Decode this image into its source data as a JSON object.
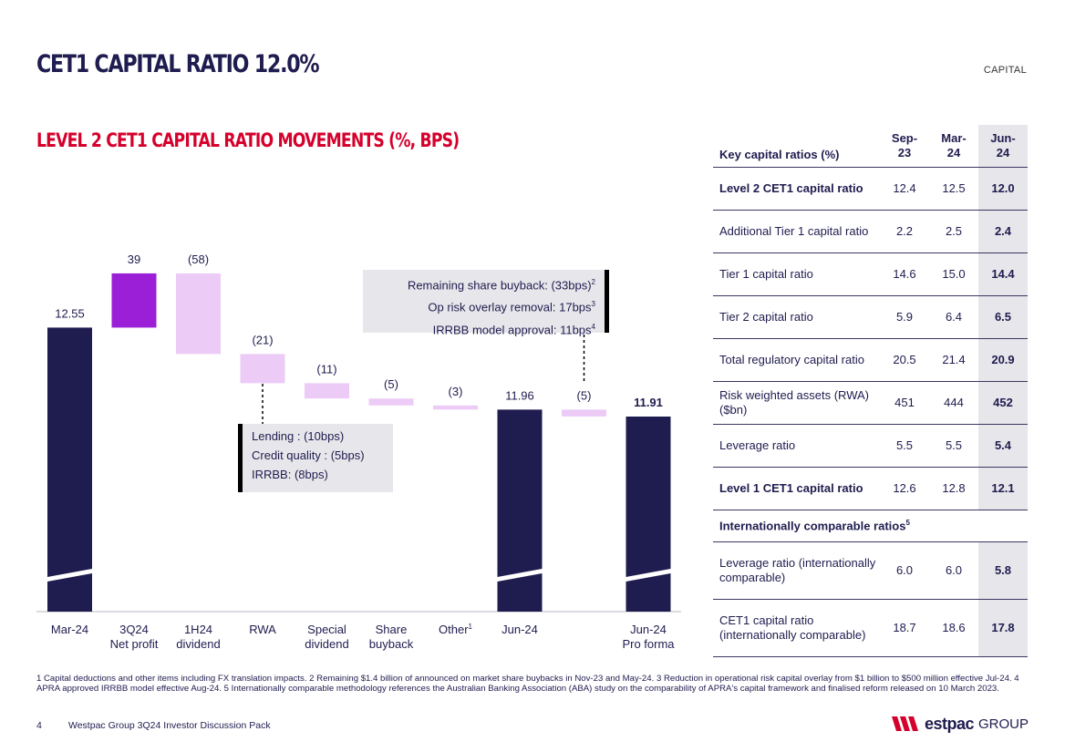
{
  "header": {
    "title": "CET1 CAPITAL RATIO 12.0%",
    "section": "CAPITAL"
  },
  "chart_title": "LEVEL 2 CET1 CAPITAL RATIO MOVEMENTS (%, BPS)",
  "colors": {
    "navy": "#1f1c4f",
    "purple": "#9b1fd6",
    "lilac": "#ecccf6",
    "red": "#d5002b",
    "grey_box": "#e7e6ea"
  },
  "chart_data": {
    "type": "bar",
    "subtype": "waterfall",
    "title": "LEVEL 2 CET1 CAPITAL RATIO MOVEMENTS (%, BPS)",
    "unit_totals": "%",
    "unit_movements": "bps",
    "axis_break": true,
    "steps": [
      {
        "label": "Mar-24",
        "kind": "total",
        "value": 12.55,
        "display": "12.55",
        "bold": false
      },
      {
        "label": "3Q24 Net profit",
        "kind": "delta",
        "value": 39,
        "display": "39",
        "color": "purple"
      },
      {
        "label": "1H24 dividend",
        "kind": "delta",
        "value": -58,
        "display": "(58)",
        "color": "lilac"
      },
      {
        "label": "RWA",
        "kind": "delta",
        "value": -21,
        "display": "(21)",
        "color": "lilac"
      },
      {
        "label": "Special dividend",
        "kind": "delta",
        "value": -11,
        "display": "(11)",
        "color": "lilac"
      },
      {
        "label": "Share buyback",
        "kind": "delta",
        "value": -5,
        "display": "(5)",
        "color": "lilac"
      },
      {
        "label": "Other",
        "kind": "delta",
        "value": -3,
        "display": "(3)",
        "color": "lilac",
        "footnote": "1"
      },
      {
        "label": "Jun-24",
        "kind": "total",
        "value": 11.96,
        "display": "11.96",
        "bold": false
      },
      {
        "label": "",
        "kind": "delta",
        "value": -5,
        "display": "(5)",
        "color": "lilac"
      },
      {
        "label": "Jun-24 Pro forma",
        "kind": "total",
        "value": 11.91,
        "display": "11.91",
        "bold": true
      }
    ],
    "category_lines": [
      [
        "Mar-24"
      ],
      [
        "3Q24",
        "Net profit"
      ],
      [
        "1H24",
        "dividend"
      ],
      [
        "RWA"
      ],
      [
        "Special",
        "dividend"
      ],
      [
        "Share",
        "buyback"
      ],
      [
        "Other"
      ],
      [
        "Jun-24"
      ],
      [
        ""
      ],
      [
        "Jun-24",
        "Pro forma"
      ]
    ],
    "annotations": {
      "rwa_breakdown": [
        "Lending : (10bps)",
        "Credit quality : (5bps)",
        "IRRBB: (8bps)"
      ],
      "pro_forma_breakdown": [
        {
          "text": "Remaining share buyback: (33bps)",
          "sup": "2"
        },
        {
          "text": "Op risk overlay removal: 17bps",
          "sup": "3"
        },
        {
          "text": "IRRBB model approval: 11bps",
          "sup": "4"
        }
      ]
    }
  },
  "table": {
    "header_label": "Key capital ratios (%)",
    "columns": [
      "Sep-23",
      "Mar-24",
      "Jun-24"
    ],
    "column_lines": [
      [
        "Sep-",
        "23"
      ],
      [
        "Mar-",
        "24"
      ],
      [
        "Jun-",
        "24"
      ]
    ],
    "rows": [
      {
        "label": "Level 2 CET1 capital ratio",
        "bold": true,
        "values": [
          "12.4",
          "12.5",
          "12.0"
        ]
      },
      {
        "label": "Additional Tier 1 capital ratio",
        "bold": false,
        "values": [
          "2.2",
          "2.5",
          "2.4"
        ]
      },
      {
        "label": "Tier 1 capital ratio",
        "bold": false,
        "values": [
          "14.6",
          "15.0",
          "14.4"
        ]
      },
      {
        "label": "Tier 2 capital ratio",
        "bold": false,
        "values": [
          "5.9",
          "6.4",
          "6.5"
        ]
      },
      {
        "label": "Total regulatory capital ratio",
        "bold": false,
        "values": [
          "20.5",
          "21.4",
          "20.9"
        ]
      },
      {
        "label": "Risk weighted assets (RWA) ($bn)",
        "bold": false,
        "values": [
          "451",
          "444",
          "452"
        ]
      },
      {
        "label": "Leverage ratio",
        "bold": false,
        "values": [
          "5.5",
          "5.5",
          "5.4"
        ]
      },
      {
        "label": "Level 1 CET1 capital ratio",
        "bold": true,
        "values": [
          "12.6",
          "12.8",
          "12.1"
        ]
      }
    ],
    "intl_heading": "Internationally comparable ratios",
    "intl_sup": "5",
    "intl_rows": [
      {
        "label": "Leverage ratio (internationally comparable)",
        "values": [
          "6.0",
          "6.0",
          "5.8"
        ]
      },
      {
        "label": "CET1 capital ratio (internationally comparable)",
        "values": [
          "18.7",
          "18.6",
          "17.8"
        ]
      }
    ]
  },
  "footnote": "1 Capital deductions and other items including FX translation impacts. 2 Remaining $1.4 billion of announced on market share buybacks in Nov-23 and May-24. 3 Reduction in operational risk capital overlay from $1 billion to $500 million effective Jul-24. 4 APRA approved IRRBB model effective Aug-24. 5 Internationally comparable methodology references the Australian Banking Association (ABA) study on the comparability of APRA's capital framework and finalised reform released on 10 March 2023.",
  "footer": {
    "page": "4",
    "doc": "Westpac Group 3Q24 Investor Discussion Pack",
    "brand": "estpac",
    "group": "GROUP"
  }
}
